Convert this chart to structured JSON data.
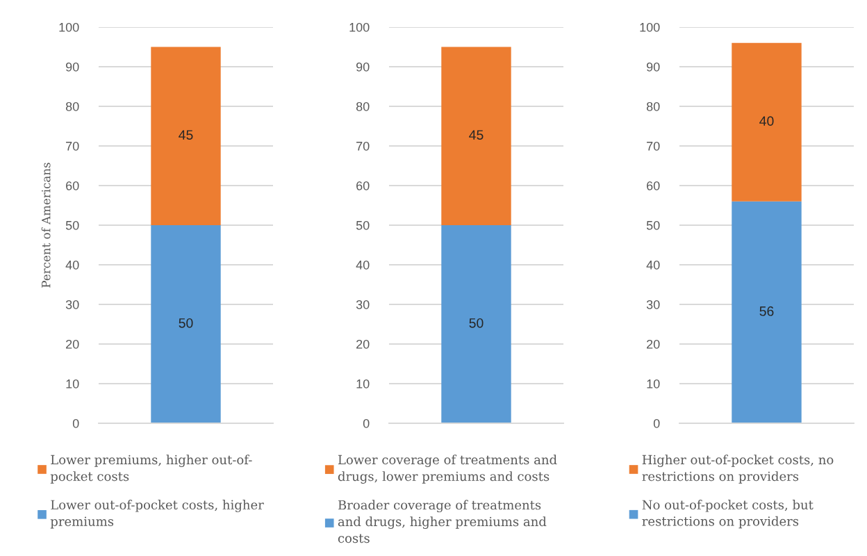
{
  "chart_data": [
    {
      "type": "bar",
      "categories": [
        null
      ],
      "series": [
        {
          "name": "Lower out-of-pocket costs, higher premiums",
          "color": "#5b9bd5",
          "values": [
            50
          ]
        },
        {
          "name": "Lower premiums, higher out-of-pocket costs",
          "color": "#ed7d31",
          "values": [
            45
          ]
        }
      ],
      "stacked": true,
      "ylabel": "Percent of Americans",
      "ylim": [
        0,
        100
      ],
      "yticks": [
        0,
        10,
        20,
        30,
        40,
        50,
        60,
        70,
        80,
        90,
        100
      ],
      "grid": "y",
      "legend": "bottom",
      "data_labels": true,
      "tick_labels": "y"
    },
    {
      "type": "bar",
      "categories": [
        null
      ],
      "series": [
        {
          "name": "Broader coverage of treatments and drugs, higher premiums and costs",
          "color": "#5b9bd5",
          "values": [
            50
          ]
        },
        {
          "name": "Lower coverage of treatments and drugs, lower premiums and costs",
          "color": "#ed7d31",
          "values": [
            45
          ]
        }
      ],
      "stacked": true,
      "ylim": [
        0,
        100
      ],
      "yticks": [
        0,
        10,
        20,
        30,
        40,
        50,
        60,
        70,
        80,
        90,
        100
      ],
      "grid": "y",
      "legend": "bottom",
      "data_labels": true,
      "tick_labels": "y"
    },
    {
      "type": "bar",
      "categories": [
        null
      ],
      "series": [
        {
          "name": "No out-of-pocket costs, but restrictions on providers",
          "color": "#5b9bd5",
          "values": [
            56
          ]
        },
        {
          "name": "Higher out-of-pocket costs, no restrictions on providers",
          "color": "#ed7d31",
          "values": [
            40
          ]
        }
      ],
      "stacked": true,
      "ylim": [
        0,
        100
      ],
      "yticks": [
        0,
        10,
        20,
        30,
        40,
        50,
        60,
        70,
        80,
        90,
        100
      ],
      "grid": "y",
      "legend": "bottom",
      "data_labels": true,
      "tick_labels": "y"
    }
  ]
}
